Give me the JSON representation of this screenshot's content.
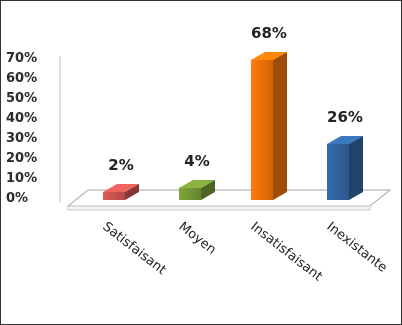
{
  "chart_data": {
    "type": "bar",
    "categories": [
      "Satisfaisant",
      "Moyen",
      "Insatisfaisant",
      "Inexistante"
    ],
    "values": [
      2,
      4,
      68,
      26
    ],
    "data_labels": [
      "2%",
      "4%",
      "68%",
      "26%"
    ],
    "y_ticks": [
      "0%",
      "10%",
      "20%",
      "30%",
      "40%",
      "50%",
      "60%",
      "70%"
    ],
    "ylim": [
      0,
      70
    ],
    "grid": false,
    "legend": "none",
    "colors": [
      "#c0504d",
      "#6f8f32",
      "#e36c09",
      "#2f5f98"
    ]
  }
}
